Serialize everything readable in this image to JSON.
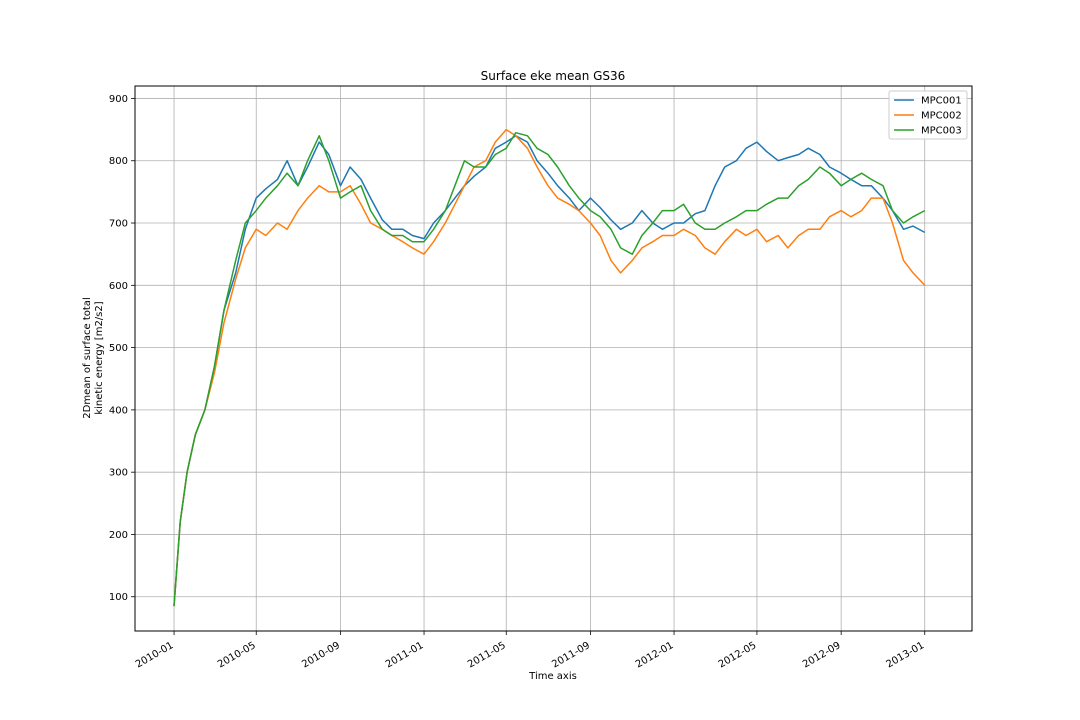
{
  "chart_data": {
    "type": "line",
    "title": "Surface eke mean GS36",
    "xlabel": "Time axis",
    "ylabel_lines": [
      "2Dmean of surface total",
      "kinetic energy [m2/s2]"
    ],
    "x_ticks": [
      "2010-01",
      "2010-05",
      "2010-09",
      "2011-01",
      "2011-05",
      "2011-09",
      "2012-01",
      "2012-05",
      "2012-09",
      "2013-01"
    ],
    "x_range": [
      "2009-11-05",
      "2013-03-11"
    ],
    "y_ticks": [
      100,
      200,
      300,
      400,
      500,
      600,
      700,
      800,
      900
    ],
    "ylim": [
      45,
      920
    ],
    "grid": true,
    "legend_position": "top-right",
    "series": [
      {
        "name": "MPC001",
        "color": "#1f77b4",
        "x": [
          "2010-01-01",
          "2010-01-10",
          "2010-01-20",
          "2010-02-01",
          "2010-02-15",
          "2010-03-01",
          "2010-03-15",
          "2010-04-01",
          "2010-04-15",
          "2010-05-01",
          "2010-05-15",
          "2010-06-01",
          "2010-06-15",
          "2010-07-01",
          "2010-07-15",
          "2010-08-01",
          "2010-08-15",
          "2010-09-01",
          "2010-09-15",
          "2010-10-01",
          "2010-10-15",
          "2010-11-01",
          "2010-11-15",
          "2010-12-01",
          "2010-12-15",
          "2011-01-01",
          "2011-01-15",
          "2011-02-01",
          "2011-02-15",
          "2011-03-01",
          "2011-03-15",
          "2011-04-01",
          "2011-04-15",
          "2011-05-01",
          "2011-05-15",
          "2011-06-01",
          "2011-06-15",
          "2011-07-01",
          "2011-07-15",
          "2011-08-01",
          "2011-08-15",
          "2011-09-01",
          "2011-09-15",
          "2011-10-01",
          "2011-10-15",
          "2011-11-01",
          "2011-11-15",
          "2011-12-01",
          "2011-12-15",
          "2012-01-01",
          "2012-01-15",
          "2012-02-01",
          "2012-02-15",
          "2012-03-01",
          "2012-03-15",
          "2012-04-01",
          "2012-04-15",
          "2012-05-01",
          "2012-05-15",
          "2012-06-01",
          "2012-06-15",
          "2012-07-01",
          "2012-07-15",
          "2012-08-01",
          "2012-08-15",
          "2012-09-01",
          "2012-09-15",
          "2012-10-01",
          "2012-10-15",
          "2012-11-01",
          "2012-11-15",
          "2012-12-01",
          "2012-12-15",
          "2013-01-01"
        ],
        "values": [
          85,
          220,
          300,
          360,
          400,
          470,
          560,
          620,
          690,
          740,
          755,
          770,
          800,
          760,
          790,
          830,
          810,
          760,
          790,
          770,
          740,
          705,
          690,
          690,
          680,
          675,
          700,
          720,
          740,
          760,
          775,
          790,
          820,
          830,
          840,
          830,
          800,
          780,
          760,
          740,
          720,
          740,
          725,
          705,
          690,
          700,
          720,
          700,
          690,
          700,
          700,
          715,
          720,
          760,
          790,
          800,
          820,
          830,
          815,
          800,
          805,
          810,
          820,
          810,
          790,
          780,
          770,
          760,
          760,
          740,
          720,
          690,
          695,
          685
        ]
      },
      {
        "name": "MPC002",
        "color": "#ff7f0e",
        "x": [
          "2010-01-01",
          "2010-01-10",
          "2010-01-20",
          "2010-02-01",
          "2010-02-15",
          "2010-03-01",
          "2010-03-15",
          "2010-04-01",
          "2010-04-15",
          "2010-05-01",
          "2010-05-15",
          "2010-06-01",
          "2010-06-15",
          "2010-07-01",
          "2010-07-15",
          "2010-08-01",
          "2010-08-15",
          "2010-09-01",
          "2010-09-15",
          "2010-10-01",
          "2010-10-15",
          "2010-11-01",
          "2010-11-15",
          "2010-12-01",
          "2010-12-15",
          "2011-01-01",
          "2011-01-15",
          "2011-02-01",
          "2011-02-15",
          "2011-03-01",
          "2011-03-15",
          "2011-04-01",
          "2011-04-15",
          "2011-05-01",
          "2011-05-15",
          "2011-06-01",
          "2011-06-15",
          "2011-07-01",
          "2011-07-15",
          "2011-08-01",
          "2011-08-15",
          "2011-09-01",
          "2011-09-15",
          "2011-10-01",
          "2011-10-15",
          "2011-11-01",
          "2011-11-15",
          "2011-12-01",
          "2011-12-15",
          "2012-01-01",
          "2012-01-15",
          "2012-02-01",
          "2012-02-15",
          "2012-03-01",
          "2012-03-15",
          "2012-04-01",
          "2012-04-15",
          "2012-05-01",
          "2012-05-15",
          "2012-06-01",
          "2012-06-15",
          "2012-07-01",
          "2012-07-15",
          "2012-08-01",
          "2012-08-15",
          "2012-09-01",
          "2012-09-15",
          "2012-10-01",
          "2012-10-15",
          "2012-11-01",
          "2012-11-15",
          "2012-12-01",
          "2012-12-15",
          "2013-01-01"
        ],
        "values": [
          85,
          220,
          300,
          360,
          400,
          460,
          540,
          610,
          660,
          690,
          680,
          700,
          690,
          720,
          740,
          760,
          750,
          750,
          760,
          730,
          700,
          690,
          680,
          670,
          660,
          650,
          670,
          700,
          730,
          760,
          790,
          800,
          830,
          850,
          840,
          820,
          790,
          760,
          740,
          730,
          720,
          700,
          680,
          640,
          620,
          640,
          660,
          670,
          680,
          680,
          690,
          680,
          660,
          650,
          670,
          690,
          680,
          690,
          670,
          680,
          660,
          680,
          690,
          690,
          710,
          720,
          710,
          720,
          740,
          740,
          700,
          640,
          620,
          600
        ]
      },
      {
        "name": "MPC003",
        "color": "#2ca02c",
        "x": [
          "2010-01-01",
          "2010-01-10",
          "2010-01-20",
          "2010-02-01",
          "2010-02-15",
          "2010-03-01",
          "2010-03-15",
          "2010-04-01",
          "2010-04-15",
          "2010-05-01",
          "2010-05-15",
          "2010-06-01",
          "2010-06-15",
          "2010-07-01",
          "2010-07-15",
          "2010-08-01",
          "2010-08-15",
          "2010-09-01",
          "2010-09-15",
          "2010-10-01",
          "2010-10-15",
          "2010-11-01",
          "2010-11-15",
          "2010-12-01",
          "2010-12-15",
          "2011-01-01",
          "2011-01-15",
          "2011-02-01",
          "2011-02-15",
          "2011-03-01",
          "2011-03-15",
          "2011-04-01",
          "2011-04-15",
          "2011-05-01",
          "2011-05-15",
          "2011-06-01",
          "2011-06-15",
          "2011-07-01",
          "2011-07-15",
          "2011-08-01",
          "2011-08-15",
          "2011-09-01",
          "2011-09-15",
          "2011-10-01",
          "2011-10-15",
          "2011-11-01",
          "2011-11-15",
          "2011-12-01",
          "2011-12-15",
          "2012-01-01",
          "2012-01-15",
          "2012-02-01",
          "2012-02-15",
          "2012-03-01",
          "2012-03-15",
          "2012-04-01",
          "2012-04-15",
          "2012-05-01",
          "2012-05-15",
          "2012-06-01",
          "2012-06-15",
          "2012-07-01",
          "2012-07-15",
          "2012-08-01",
          "2012-08-15",
          "2012-09-01",
          "2012-09-15",
          "2012-10-01",
          "2012-10-15",
          "2012-11-01",
          "2012-11-15",
          "2012-12-01",
          "2012-12-15",
          "2013-01-01"
        ],
        "values": [
          85,
          220,
          300,
          360,
          400,
          470,
          560,
          640,
          700,
          720,
          740,
          760,
          780,
          760,
          800,
          840,
          800,
          740,
          750,
          760,
          720,
          690,
          680,
          680,
          670,
          670,
          690,
          720,
          760,
          800,
          790,
          790,
          810,
          820,
          845,
          840,
          820,
          810,
          790,
          760,
          740,
          720,
          710,
          690,
          660,
          650,
          680,
          700,
          720,
          720,
          730,
          700,
          690,
          690,
          700,
          710,
          720,
          720,
          730,
          740,
          740,
          760,
          770,
          790,
          780,
          760,
          770,
          780,
          770,
          760,
          720,
          700,
          710,
          720
        ]
      }
    ]
  }
}
